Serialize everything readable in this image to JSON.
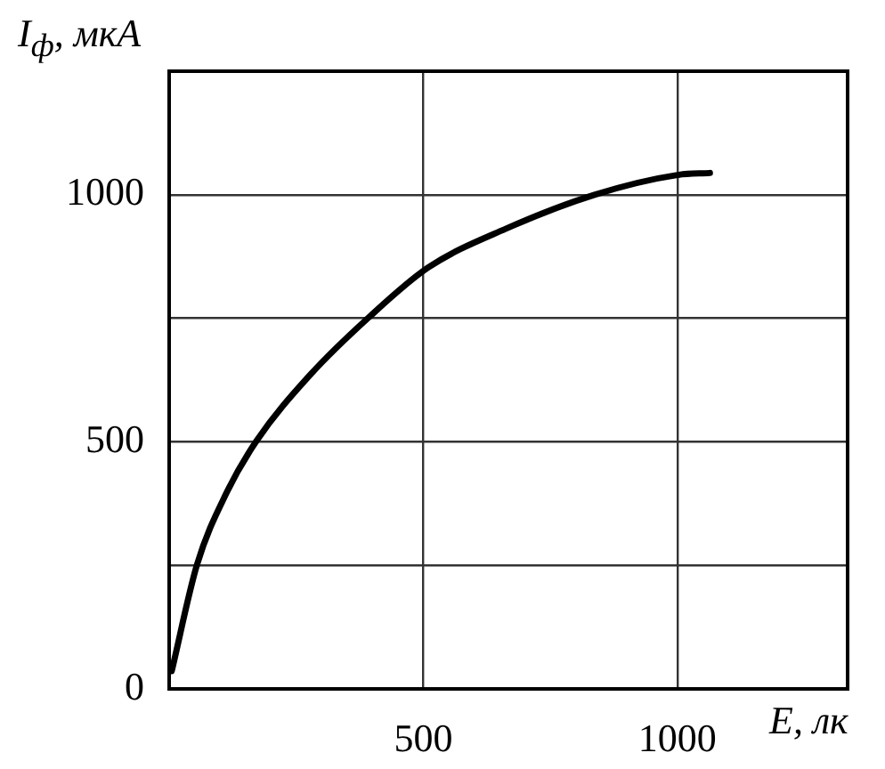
{
  "chart_data": {
    "type": "line",
    "xlabel": "E, лк",
    "ylabel": "I$_{ф}$, мкА",
    "series": [
      {
        "color": "#000000",
        "x": [
          5,
          55,
          113,
          172,
          277,
          393,
          510,
          662,
          837,
          1000,
          1064
        ],
        "values": [
          36,
          252,
          397,
          502,
          635,
          752,
          853,
          931,
          1000,
          1040,
          1044
        ]
      }
    ],
    "xlim": [
      0,
      1335
    ],
    "xticks": [
      500,
      1000
    ],
    "ylim": [
      0,
      1250
    ],
    "yticks": [
      0,
      {
        "value": 250,
        "label": null
      },
      500,
      {
        "value": 750,
        "label": null
      },
      1000
    ],
    "grid": true,
    "legend": false,
    "marker": "none",
    "line_style": "solid"
  }
}
